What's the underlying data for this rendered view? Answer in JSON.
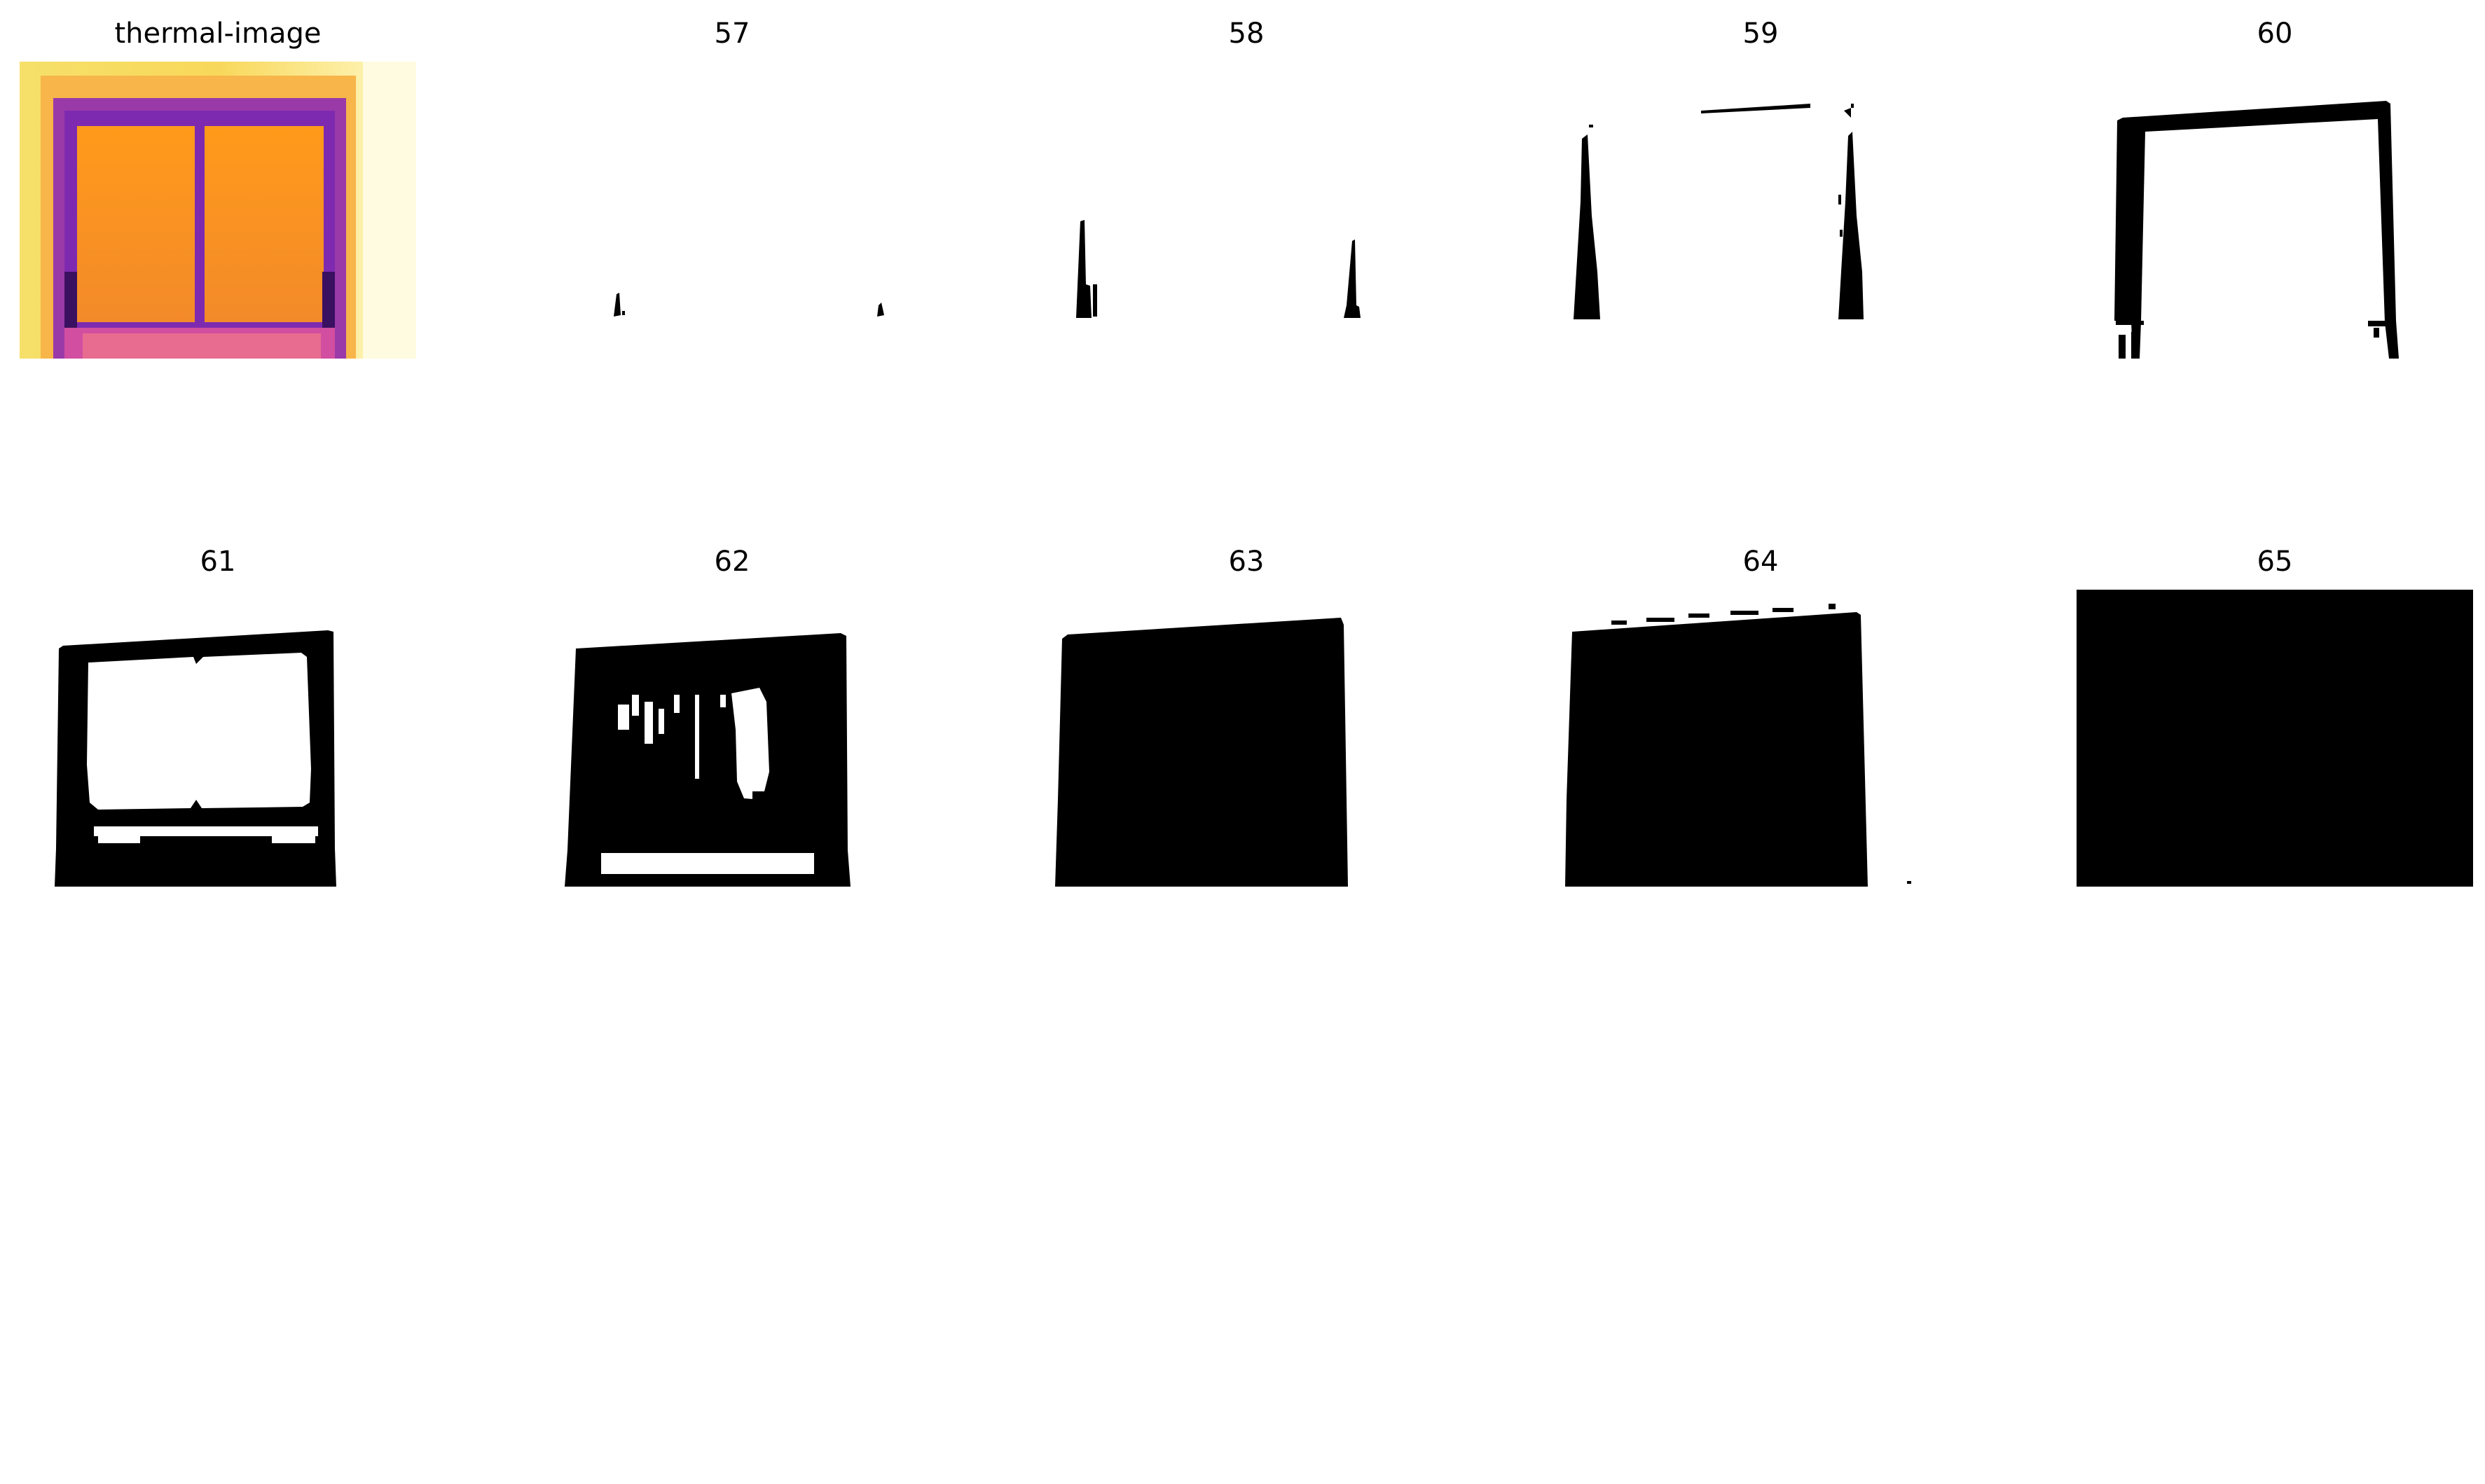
{
  "figure": {
    "panels": [
      {
        "title": "thermal-image",
        "kind": "thermal"
      },
      {
        "title": "57",
        "kind": "mask"
      },
      {
        "title": "58",
        "kind": "mask"
      },
      {
        "title": "59",
        "kind": "mask"
      },
      {
        "title": "60",
        "kind": "mask"
      },
      {
        "title": "61",
        "kind": "mask"
      },
      {
        "title": "62",
        "kind": "mask"
      },
      {
        "title": "63",
        "kind": "mask"
      },
      {
        "title": "64",
        "kind": "mask"
      },
      {
        "title": "65",
        "kind": "mask"
      }
    ],
    "colors": {
      "background": "#ffffff",
      "mask": "#000000",
      "thermal_hot": "#fff7b0",
      "thermal_mid": "#ff9a1a",
      "thermal_cool": "#7a1fb0"
    }
  }
}
